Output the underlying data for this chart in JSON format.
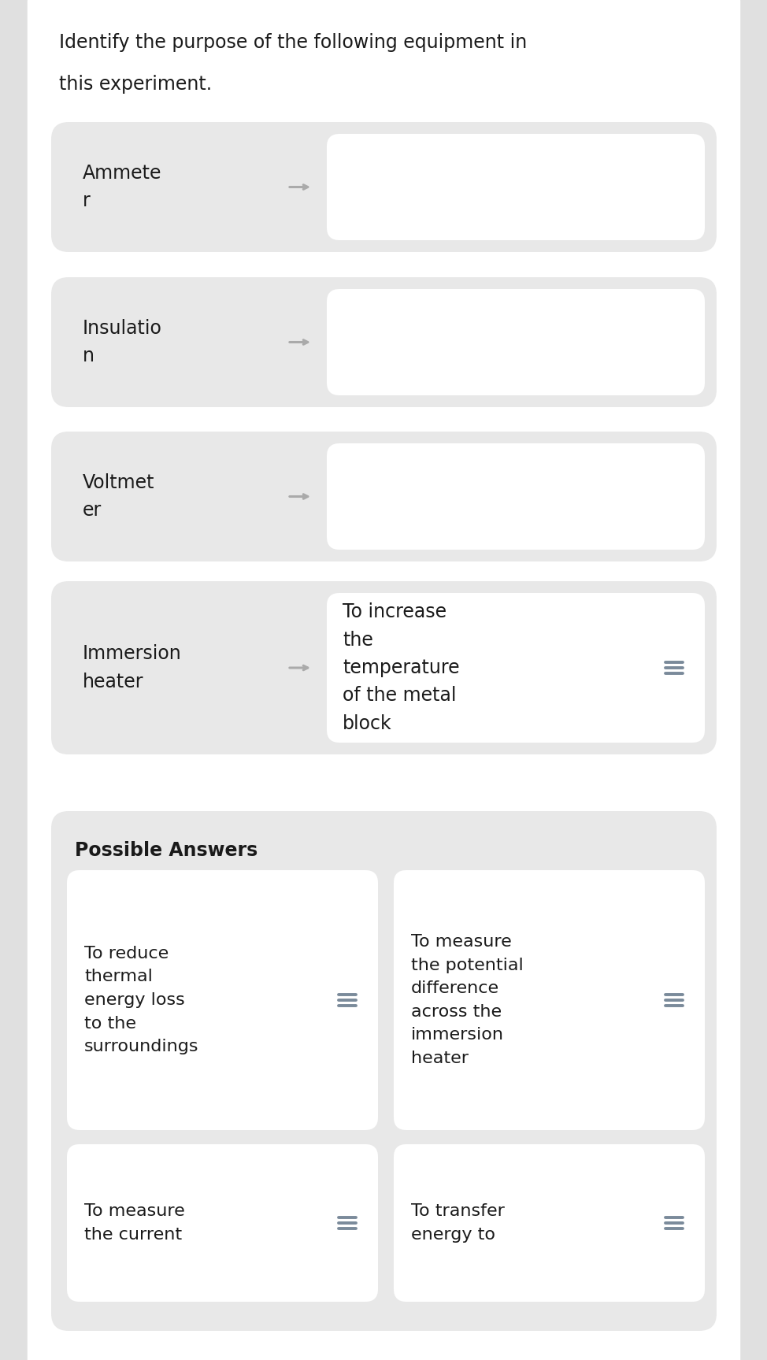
{
  "title_line1": "Identify the purpose of the following equipment in",
  "title_line2": "this experiment.",
  "title_fontsize": 17,
  "title_color": "#1a1a1a",
  "background_color": "#ffffff",
  "side_bg": "#e8e8e8",
  "card_bg_gray": "#e8e8e8",
  "card_bg_white": "#ffffff",
  "match_items": [
    {
      "left": "Ammete\nr",
      "right": "",
      "has_answer": false
    },
    {
      "left": "Insulatio\nn",
      "right": "",
      "has_answer": false
    },
    {
      "left": "Voltmet\ner",
      "right": "",
      "has_answer": false
    },
    {
      "left": "Immersion\nheater",
      "right": "To increase\nthe\ntemperature\nof the metal\nblock",
      "has_answer": true
    }
  ],
  "possible_answers_title": "Possible Answers",
  "possible_answers": [
    {
      "text": "To reduce\nthermal\nenergy loss\nto the\nsurroundings",
      "col": 0,
      "row": 0
    },
    {
      "text": "To measure\nthe potential\ndifference\nacross the\nimmersion\nheater",
      "col": 1,
      "row": 0
    },
    {
      "text": "To measure\nthe current",
      "col": 0,
      "row": 1
    },
    {
      "text": "To transfer\nenergy to",
      "col": 1,
      "row": 1
    }
  ],
  "arrow_color": "#aaaaaa",
  "text_color": "#1a1a1a",
  "font_size_main": 17,
  "font_size_answer": 16,
  "font_size_pa_title": 17,
  "hamburger_color": "#7a8a9a"
}
